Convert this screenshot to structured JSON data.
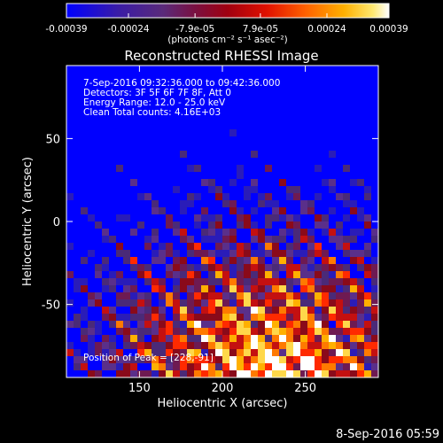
{
  "chart_data": {
    "type": "heatmap",
    "title": "Reconstructed RHESSI Image",
    "xlabel": "Heliocentric X (arcsec)",
    "ylabel": "Heliocentric Y (arcsec)",
    "xlim": [
      106,
      294
    ],
    "ylim": [
      -94,
      94
    ],
    "x_ticks": [
      150,
      200,
      250
    ],
    "y_ticks": [
      50,
      0,
      -50
    ],
    "colorbar": {
      "min": -0.00039,
      "max": 0.00039,
      "ticks": [
        -0.00039,
        -0.00024,
        -7.9e-05,
        7.9e-05,
        0.00024,
        0.00039
      ],
      "tick_labels": [
        "-0.00039",
        "-0.00024",
        "-7.9e-05",
        "7.9e-05",
        "0.00024",
        "0.00039"
      ],
      "units_label": "(photons cm⁻² s⁻¹ asec⁻²)"
    },
    "colormap": [
      "#0000ff",
      "#2a1cb8",
      "#4a2a78",
      "#5a2f8a",
      "#6e1a52",
      "#8a0a1a",
      "#c41010",
      "#ff2a00",
      "#ff7a00",
      "#ffb000",
      "#ffd84a",
      "#ffffff"
    ],
    "annotations": [
      "7-Sep-2016 09:32:36.000 to 09:42:36.000",
      "Detectors: 3F 5F 6F 7F 8F, Att 0",
      "Energy Range: 12.0 - 25.0 keV",
      "Clean    Total counts: 4.16E+03"
    ],
    "peak_label": "Position of Peak = [228,-91]",
    "peak_position": [
      228,
      -91
    ],
    "grid": false
  },
  "footer": {
    "timestamp": "8-Sep-2016 05:59"
  }
}
